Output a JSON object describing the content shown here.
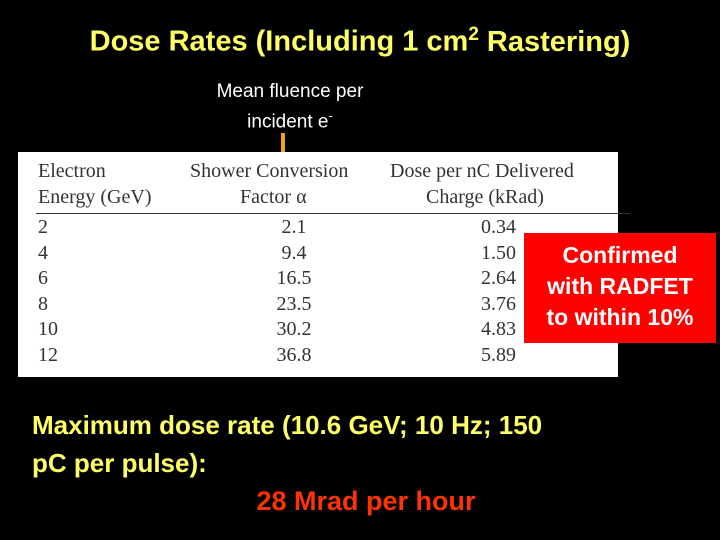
{
  "title": {
    "main": "Dose Rates (Including 1 cm",
    "sup": "2",
    "end": "Rastering)"
  },
  "annotation": {
    "line1": "Mean fluence per",
    "line2": "incident e",
    "sup": "-"
  },
  "table": {
    "header": [
      [
        "Electron",
        "Energy (GeV)"
      ],
      [
        "Shower Conversion",
        "Factor α"
      ],
      [
        "Dose per nC Delivered",
        "Charge (kRad)"
      ]
    ],
    "rows": [
      [
        "2",
        "2.1",
        "0.34"
      ],
      [
        "4",
        "9.4",
        "1.50"
      ],
      [
        "6",
        "16.5",
        "2.64"
      ],
      [
        "8",
        "23.5",
        "3.76"
      ],
      [
        "10",
        "30.2",
        "4.83"
      ],
      [
        "12",
        "36.8",
        "5.89"
      ]
    ]
  },
  "callout": [
    "Confirmed",
    "with RADFET",
    "to within 10%"
  ],
  "summary": {
    "line1": "Maximum dose rate (10.6 GeV; 10 Hz; 150",
    "line2": "pC per pulse):",
    "highlight": "28 Mrad per hour"
  }
}
